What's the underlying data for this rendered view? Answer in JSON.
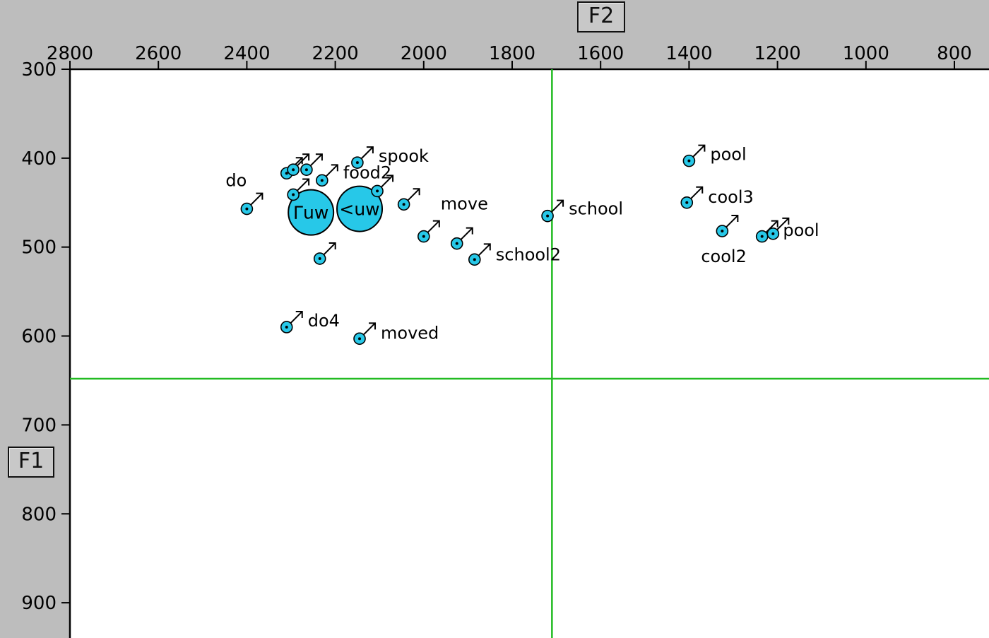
{
  "chart_data": {
    "type": "scatter",
    "x_axis_label": "F2",
    "y_axis_label": "F1",
    "x_range": [
      2800,
      750
    ],
    "y_range": [
      300,
      940
    ],
    "x_ticks": [
      2800,
      2600,
      2400,
      2200,
      2000,
      1800,
      1600,
      1400,
      1200,
      1000,
      800
    ],
    "y_ticks": [
      300,
      400,
      500,
      600,
      700,
      800,
      900
    ],
    "reference_lines": {
      "f2": 1710,
      "f1": 648
    },
    "colors": {
      "point": "#27c8e8",
      "reference_line": "#22bb22",
      "background": "#bdbdbd",
      "plot_area": "#ffffff"
    },
    "marker_symbol": "male-symbol",
    "points": [
      {
        "f2": 2400,
        "f1": 457,
        "label": "do"
      },
      {
        "f2": 2150,
        "f1": 405,
        "label": "spook"
      },
      {
        "f2": 2230,
        "f1": 425,
        "label": "food2"
      },
      {
        "f2": 2310,
        "f1": 417,
        "label": ""
      },
      {
        "f2": 2295,
        "f1": 413,
        "label": ""
      },
      {
        "f2": 2265,
        "f1": 413,
        "label": ""
      },
      {
        "f2": 2295,
        "f1": 441,
        "label": ""
      },
      {
        "f2": 2105,
        "f1": 437,
        "label": ""
      },
      {
        "f2": 2045,
        "f1": 452,
        "label": ""
      },
      {
        "f2": 2000,
        "f1": 488,
        "label": "move"
      },
      {
        "f2": 1925,
        "f1": 496,
        "label": ""
      },
      {
        "f2": 1885,
        "f1": 514,
        "label": "school2"
      },
      {
        "f2": 2235,
        "f1": 513,
        "label": ""
      },
      {
        "f2": 2310,
        "f1": 590,
        "label": "do4"
      },
      {
        "f2": 2145,
        "f1": 603,
        "label": "moved"
      },
      {
        "f2": 1720,
        "f1": 465,
        "label": "school"
      },
      {
        "f2": 1400,
        "f1": 403,
        "label": "pool"
      },
      {
        "f2": 1405,
        "f1": 450,
        "label": "cool3"
      },
      {
        "f2": 1325,
        "f1": 482,
        "label": "cool2"
      },
      {
        "f2": 1235,
        "f1": 488,
        "label": ""
      },
      {
        "f2": 1210,
        "f1": 485,
        "label": "pool"
      }
    ],
    "means": [
      {
        "f2": 2255,
        "f1": 461,
        "label": "Γuw"
      },
      {
        "f2": 2145,
        "f1": 457,
        "label": "<uw"
      }
    ]
  }
}
